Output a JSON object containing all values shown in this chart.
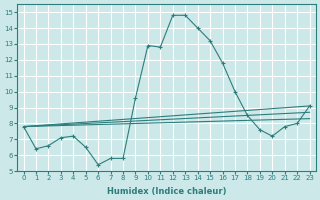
{
  "xlabel": "Humidex (Indice chaleur)",
  "background_color": "#cce8e8",
  "grid_color": "#ffffff",
  "line_color": "#2e7d7d",
  "xlim": [
    -0.5,
    23.5
  ],
  "ylim": [
    5,
    15.5
  ],
  "yticks": [
    5,
    6,
    7,
    8,
    9,
    10,
    11,
    12,
    13,
    14,
    15
  ],
  "xticks": [
    0,
    1,
    2,
    3,
    4,
    5,
    6,
    7,
    8,
    9,
    10,
    11,
    12,
    13,
    14,
    15,
    16,
    17,
    18,
    19,
    20,
    21,
    22,
    23
  ],
  "main_series": {
    "x": [
      0,
      1,
      2,
      3,
      4,
      5,
      6,
      7,
      8,
      9,
      10,
      11,
      12,
      13,
      14,
      15,
      16,
      17,
      18,
      19,
      20,
      21,
      22,
      23
    ],
    "y": [
      7.8,
      6.4,
      6.6,
      7.1,
      7.2,
      6.5,
      5.4,
      5.8,
      5.8,
      9.6,
      12.9,
      12.8,
      14.8,
      14.8,
      14.0,
      13.2,
      11.8,
      10.0,
      8.5,
      7.6,
      7.2,
      7.8,
      8.0,
      9.1
    ]
  },
  "smooth_series": [
    {
      "x": [
        0,
        23
      ],
      "y": [
        7.8,
        9.1
      ]
    },
    {
      "x": [
        0,
        23
      ],
      "y": [
        7.8,
        8.7
      ]
    },
    {
      "x": [
        0,
        23
      ],
      "y": [
        7.8,
        8.3
      ]
    }
  ]
}
